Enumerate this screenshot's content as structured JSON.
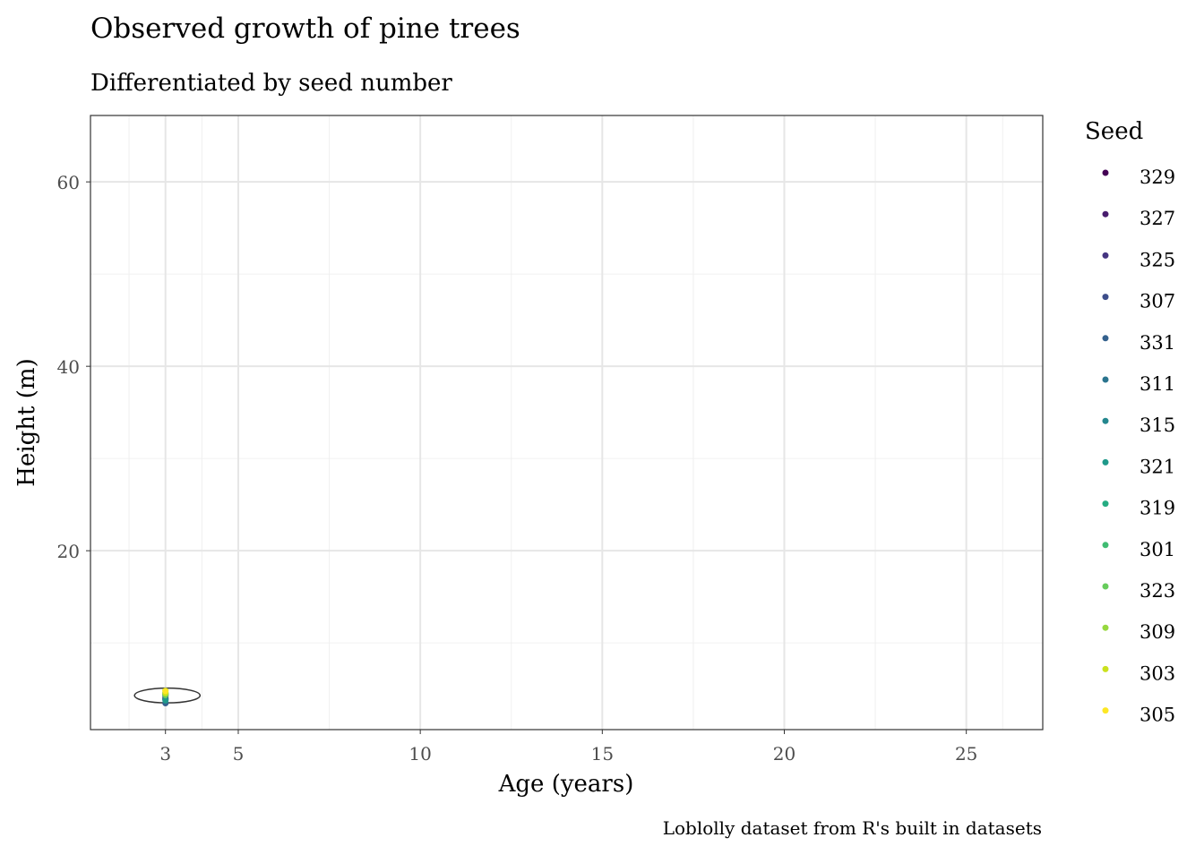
{
  "chart_data": {
    "type": "scatter",
    "title": "Observed growth of pine trees",
    "subtitle": "Differentiated by seed number",
    "xlabel": "Age (years)",
    "ylabel": "Height (m)",
    "caption": "Loblolly dataset from R's built in datasets",
    "xlim": [
      0.94,
      27.1
    ],
    "ylim": [
      0.6,
      67.2
    ],
    "xticks": [
      3,
      5,
      10,
      15,
      20,
      25
    ],
    "yticks": [
      20,
      40,
      60
    ],
    "xminor": [
      7.5,
      12.5,
      17.5,
      22.5,
      2,
      4,
      26
    ],
    "yminor": [
      10,
      30,
      50
    ],
    "grid": true,
    "legend": {
      "title": "Seed",
      "position": "right"
    },
    "series": [
      {
        "name": "329",
        "color": "#440154",
        "x": [
          3
        ],
        "y": [
          3.93
        ]
      },
      {
        "name": "327",
        "color": "#481C6E",
        "x": [
          3
        ],
        "y": [
          4.12
        ]
      },
      {
        "name": "325",
        "color": "#453581",
        "x": [
          3
        ],
        "y": [
          4.38
        ]
      },
      {
        "name": "307",
        "color": "#3D4D8A",
        "x": [
          3
        ],
        "y": [
          3.91
        ]
      },
      {
        "name": "331",
        "color": "#34618D",
        "x": [
          3
        ],
        "y": [
          3.46
        ]
      },
      {
        "name": "311",
        "color": "#2B748E",
        "x": [
          3
        ],
        "y": [
          3.88
        ]
      },
      {
        "name": "315",
        "color": "#24878E",
        "x": [
          3
        ],
        "y": [
          4.32
        ]
      },
      {
        "name": "321",
        "color": "#1F998A",
        "x": [
          3
        ],
        "y": [
          3.77
        ]
      },
      {
        "name": "319",
        "color": "#25AC82",
        "x": [
          3
        ],
        "y": [
          4.57
        ]
      },
      {
        "name": "301",
        "color": "#40BC72",
        "x": [
          3
        ],
        "y": [
          4.51
        ]
      },
      {
        "name": "323",
        "color": "#67CC5C",
        "x": [
          3
        ],
        "y": [
          4.33
        ]
      },
      {
        "name": "309",
        "color": "#97D83F",
        "x": [
          3
        ],
        "y": [
          4.81
        ]
      },
      {
        "name": "303",
        "color": "#CBE11E",
        "x": [
          3
        ],
        "y": [
          4.55
        ]
      },
      {
        "name": "305",
        "color": "#FDE725",
        "x": [
          3
        ],
        "y": [
          4.79
        ]
      }
    ],
    "annotation": {
      "type": "ellipse",
      "cx": 3.05,
      "cy": 4.3,
      "rx": 0.9,
      "ry": 0.8
    }
  }
}
